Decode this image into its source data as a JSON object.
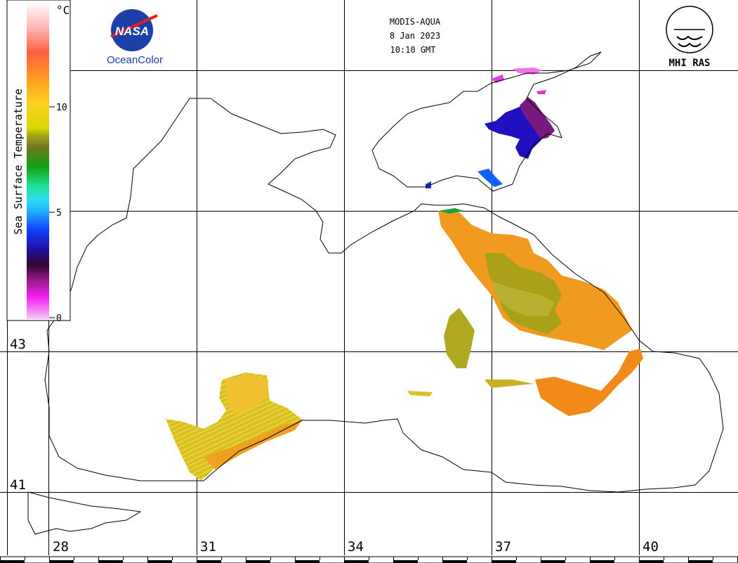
{
  "header": {
    "sensor": "MODIS-AQUA",
    "date": "8 Jan 2023",
    "time": "10:10 GMT"
  },
  "logos": {
    "nasa_text": "NASA",
    "nasa_caption": "OceanColor",
    "mhi_caption": "MHI RAS"
  },
  "colorbar": {
    "title": "Sea Surface Temperature",
    "unit": "°C",
    "ticks": [
      "10",
      "5",
      "0"
    ],
    "tick_values": [
      10,
      5,
      0
    ],
    "range": [
      0,
      15
    ]
  },
  "grid": {
    "lat_labels": [
      "43",
      "41"
    ],
    "lat_values": [
      43,
      41
    ],
    "lon_labels": [
      "28",
      "31",
      "34",
      "37",
      "40"
    ],
    "lon_values": [
      28,
      31,
      34,
      37,
      40
    ]
  },
  "colors": {
    "coast": "#000000",
    "cold": "#2a10c8",
    "cool": "#7a168e",
    "mid": "#a8a818",
    "warm": "#f0a020",
    "hot": "#f08a18"
  }
}
